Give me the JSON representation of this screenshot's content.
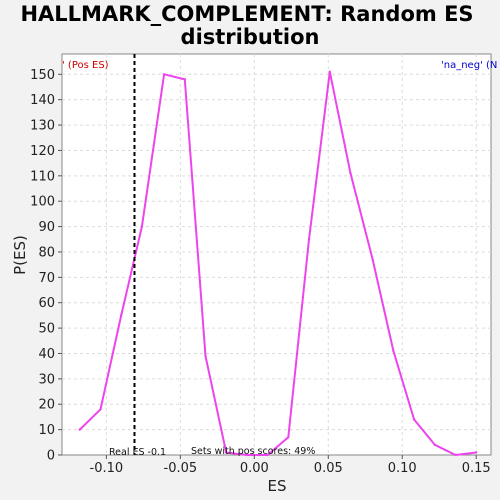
{
  "chart_data": {
    "type": "line",
    "title": "HALLMARK_COMPLEMENT: Random ES distribution",
    "title_lines": [
      "HALLMARK_COMPLEMENT: Random ES",
      "distribution"
    ],
    "xlabel": "ES",
    "ylabel": "P(ES)",
    "xlim": [
      -0.13,
      0.16
    ],
    "ylim": [
      0,
      158
    ],
    "xticks": [
      -0.1,
      -0.05,
      0.0,
      0.05,
      0.1,
      0.15
    ],
    "xtick_labels": [
      "-0.10",
      "-0.05",
      "0.00",
      "0.05",
      "0.10",
      "0.15"
    ],
    "yticks": [
      0,
      10,
      20,
      30,
      40,
      50,
      60,
      70,
      80,
      90,
      100,
      110,
      120,
      130,
      140,
      150
    ],
    "grid": true,
    "series": [
      {
        "color": "#ee44ee",
        "x": [
          -0.118,
          -0.104,
          -0.09,
          -0.076,
          -0.061,
          -0.047,
          -0.033,
          -0.019,
          -0.005,
          0.009,
          0.023,
          0.037,
          0.051,
          0.065,
          0.08,
          0.094,
          0.108,
          0.122,
          0.136,
          0.15
        ],
        "y": [
          10,
          18,
          55,
          90,
          150,
          148,
          39,
          1,
          0,
          0,
          7,
          85,
          151,
          111,
          77,
          41,
          14,
          4,
          0,
          1
        ]
      }
    ],
    "real_es": {
      "value": -0.081,
      "label": "Real ES -0.1",
      "color": "#000000"
    },
    "annotation": "Sets with pos scores: 49%",
    "legend": {
      "left_label": "' (Pos ES)",
      "left_color": "#cc0000",
      "right_label": "'na_neg' (N",
      "right_color": "#0000cc",
      "placement": "top"
    },
    "plot_background": "#ffffff"
  }
}
